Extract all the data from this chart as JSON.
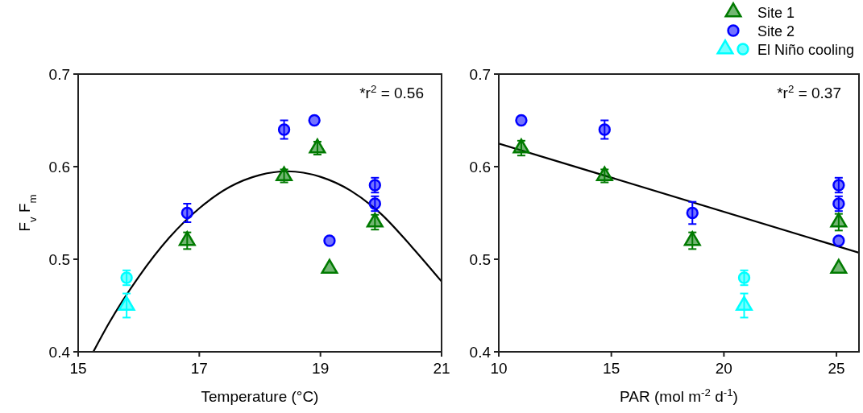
{
  "chart_data": [
    {
      "type": "scatter",
      "xlabel": "Temperature (°C)",
      "ylabel": "F$_{v}$ F$_{m}$",
      "xlim": [
        15,
        21
      ],
      "xticks": [
        15,
        17,
        19,
        21
      ],
      "ylim": [
        0.4,
        0.7
      ],
      "yticks": [
        0.4,
        0.5,
        0.6,
        0.7
      ],
      "annotations": [
        "*r$^{2}$ = 0.56"
      ],
      "series": [
        {
          "color": "#000000",
          "type": "line",
          "x": [
            15.25,
            15.5,
            16,
            16.5,
            17,
            17.5,
            18,
            18.45,
            19,
            19.5,
            20,
            20.5,
            21
          ],
          "values": [
            0.4,
            0.43,
            0.481,
            0.523,
            0.555,
            0.578,
            0.591,
            0.595,
            0.589,
            0.574,
            0.549,
            0.514,
            0.476
          ]
        },
        {
          "color": "#007a00",
          "marker": "triangle",
          "x": [
            16.8,
            18.4,
            18.95,
            19.15,
            19.9
          ],
          "values": [
            0.52,
            0.59,
            0.62,
            0.49,
            0.54
          ],
          "errors": [
            0.009,
            0.007,
            0.007,
            null,
            0.008
          ]
        },
        {
          "color": "#0000ff",
          "marker": "circle",
          "x": [
            16.8,
            18.4,
            18.9,
            19.15,
            19.9,
            19.9
          ],
          "values": [
            0.55,
            0.64,
            0.65,
            0.52,
            0.58,
            0.56
          ],
          "errors": [
            0.01,
            0.01,
            null,
            null,
            0.008,
            0.008
          ]
        },
        {
          "color": "#00ffff",
          "marker": "triangle",
          "x": [
            15.8
          ],
          "values": [
            0.45
          ],
          "errors": [
            0.013
          ]
        },
        {
          "color": "#00ffff",
          "marker": "circle",
          "x": [
            15.8
          ],
          "values": [
            0.48
          ],
          "errors": [
            0.008
          ]
        }
      ]
    },
    {
      "type": "scatter",
      "xlabel": "PAR (mol m$^{-2}$ d$^{-1}$)",
      "xlim": [
        10,
        26
      ],
      "xticks": [
        10,
        15,
        20,
        25
      ],
      "ylim": [
        0.4,
        0.7
      ],
      "yticks": [
        0.4,
        0.5,
        0.6,
        0.7
      ],
      "annotations": [
        "*r$^{2}$ = 0.37"
      ],
      "legend": "top right",
      "series": [
        {
          "color": "#000000",
          "type": "line",
          "x": [
            10,
            26
          ],
          "values": [
            0.625,
            0.507
          ]
        },
        {
          "name": "Site 1",
          "color": "#007a00",
          "marker": "triangle",
          "x": [
            11,
            14.7,
            18.6,
            25.1,
            25.1
          ],
          "values": [
            0.62,
            0.59,
            0.52,
            0.54,
            0.49
          ],
          "errors": [
            0.008,
            0.007,
            0.009,
            0.009,
            null
          ]
        },
        {
          "name": "Site 2",
          "color": "#0000ff",
          "marker": "circle",
          "x": [
            11,
            14.7,
            18.6,
            25.1,
            25.1,
            25.1
          ],
          "values": [
            0.65,
            0.64,
            0.55,
            0.58,
            0.56,
            0.52
          ],
          "errors": [
            null,
            0.01,
            0.012,
            0.008,
            0.008,
            null
          ]
        },
        {
          "color": "#00ffff",
          "marker": "triangle",
          "x": [
            20.9
          ],
          "values": [
            0.45
          ],
          "errors": [
            0.013
          ]
        },
        {
          "name": "El Niño cooling",
          "color": "#00ffff",
          "marker": "circle",
          "x": [
            20.9
          ],
          "values": [
            0.48
          ],
          "errors": [
            0.008
          ]
        }
      ]
    }
  ]
}
